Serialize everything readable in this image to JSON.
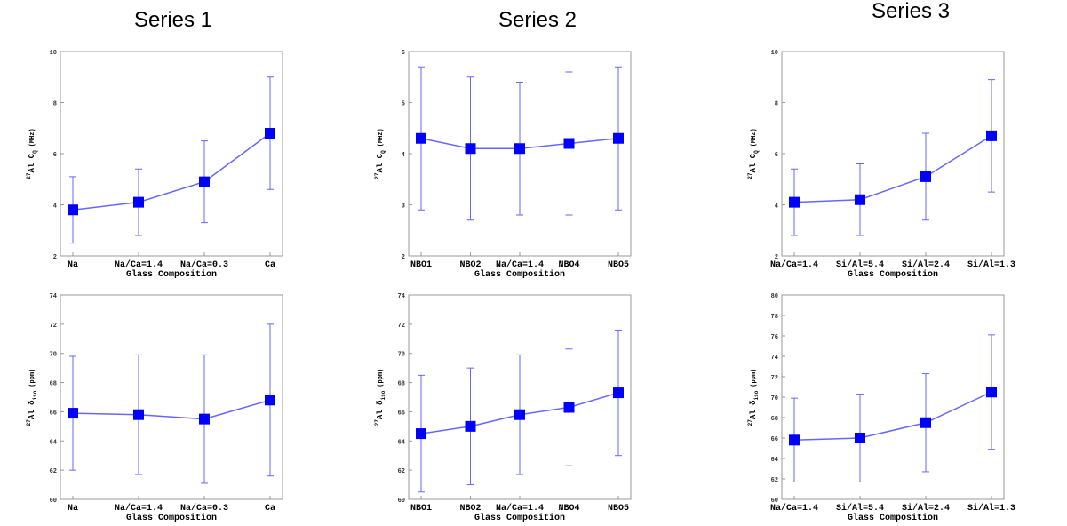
{
  "chart_data": [
    {
      "type": "line",
      "title": "Series 1",
      "categories": [
        "Na",
        "Na/Ca=1.4",
        "Na/Ca=0.3",
        "Ca"
      ],
      "values": [
        3.8,
        4.1,
        4.9,
        6.8
      ],
      "errors": [
        1.3,
        1.3,
        1.6,
        2.2
      ],
      "color": "#0000ff",
      "ylim": [
        2,
        10
      ],
      "yticks": [
        2,
        4,
        6,
        8,
        10
      ],
      "x_label": "Glass Composition",
      "y_label": {
        "sup": "27",
        "base": "Al C",
        "sub": "Q",
        "unit": "(MHz)"
      }
    },
    {
      "type": "line",
      "title": "Series 2",
      "categories": [
        "NBO1",
        "NBO2",
        "Na/Ca=1.4",
        "NBO4",
        "NBO5"
      ],
      "values": [
        4.3,
        4.1,
        4.1,
        4.2,
        4.3
      ],
      "errors": [
        1.4,
        1.4,
        1.3,
        1.4,
        1.4
      ],
      "color": "#0000ff",
      "ylim": [
        2,
        6
      ],
      "yticks": [
        2,
        3,
        4,
        5,
        6
      ],
      "x_label": "Glass Composition",
      "y_label": {
        "sup": "27",
        "base": "Al C",
        "sub": "Q",
        "unit": "(MHz)"
      }
    },
    {
      "type": "line",
      "title": "Series 3",
      "categories": [
        "Na/Ca=1.4",
        "Si/Al=5.4",
        "Si/Al=2.4",
        "Si/Al=1.3"
      ],
      "values": [
        4.1,
        4.2,
        5.1,
        6.7
      ],
      "errors": [
        1.3,
        1.4,
        1.7,
        2.2
      ],
      "color": "#0000ff",
      "ylim": [
        2,
        10
      ],
      "yticks": [
        2,
        4,
        6,
        8,
        10
      ],
      "x_label": "Glass Composition",
      "y_label": {
        "sup": "27",
        "base": "Al C",
        "sub": "Q",
        "unit": "(MHz)"
      }
    },
    {
      "type": "line",
      "categories": [
        "Na",
        "Na/Ca=1.4",
        "Na/Ca=0.3",
        "Ca"
      ],
      "values": [
        65.9,
        65.8,
        65.5,
        66.8
      ],
      "errors": [
        3.9,
        4.1,
        4.4,
        5.2
      ],
      "color": "#0000ff",
      "ylim": [
        60,
        74
      ],
      "yticks": [
        60,
        62,
        64,
        66,
        68,
        70,
        72,
        74
      ],
      "x_label": "Glass Composition",
      "y_label": {
        "sup": "27",
        "base": "Al δ",
        "sub": "iso",
        "unit": "(ppm)"
      }
    },
    {
      "type": "line",
      "categories": [
        "NBO1",
        "NBO2",
        "Na/Ca=1.4",
        "NBO4",
        "NBO5"
      ],
      "values": [
        64.5,
        65.0,
        65.8,
        66.3,
        67.3
      ],
      "errors": [
        4.0,
        4.0,
        4.1,
        4.0,
        4.3
      ],
      "color": "#0000ff",
      "ylim": [
        60,
        74
      ],
      "yticks": [
        60,
        62,
        64,
        66,
        68,
        70,
        72,
        74
      ],
      "x_label": "Glass Composition",
      "y_label": {
        "sup": "27",
        "base": "Al δ",
        "sub": "iso",
        "unit": "(ppm)"
      }
    },
    {
      "type": "line",
      "categories": [
        "Na/Ca=1.4",
        "Si/Al=5.4",
        "Si/Al=2.4",
        "Si/Al=1.3"
      ],
      "values": [
        65.8,
        66.0,
        67.5,
        70.5
      ],
      "errors": [
        4.1,
        4.3,
        4.8,
        5.6
      ],
      "color": "#0000ff",
      "ylim": [
        60,
        80
      ],
      "yticks": [
        60,
        62,
        64,
        66,
        68,
        70,
        72,
        74,
        76,
        78,
        80
      ],
      "x_label": "Glass Composition",
      "y_label": {
        "sup": "27",
        "base": "Al δ",
        "sub": "iso",
        "unit": "(ppm)"
      }
    }
  ]
}
